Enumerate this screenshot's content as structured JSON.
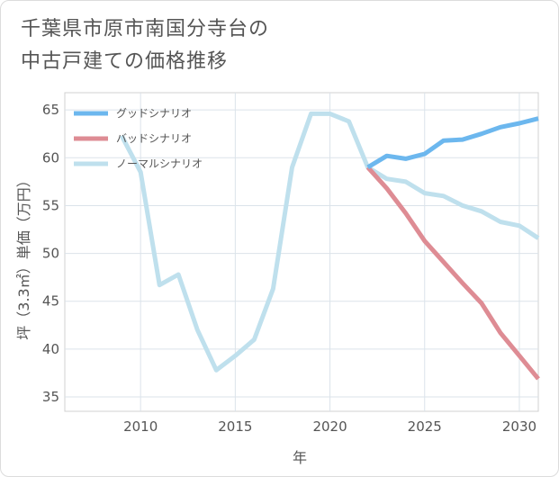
{
  "title_line1": "千葉県市原市南国分寺台の",
  "title_line2": "中古戸建ての価格推移",
  "chart_data": {
    "type": "line",
    "xlabel": "年",
    "ylabel": "坪（3.3㎡）単価（万円）",
    "xlim": [
      2006,
      2031
    ],
    "ylim": [
      33.5,
      66.8
    ],
    "xticks": [
      2010,
      2015,
      2020,
      2025,
      2030
    ],
    "yticks": [
      35,
      40,
      45,
      50,
      55,
      60,
      65
    ],
    "grid": true,
    "legend_position": "top-left",
    "series": [
      {
        "name": "グッドシナリオ",
        "color": "#6cb7ee",
        "x": [
          2022,
          2023,
          2024,
          2025,
          2026,
          2027,
          2028,
          2029,
          2030,
          2031
        ],
        "y": [
          59.0,
          60.2,
          59.9,
          60.4,
          61.8,
          61.9,
          62.5,
          63.2,
          63.6,
          64.1
        ]
      },
      {
        "name": "バッドシナリオ",
        "color": "#de8c94",
        "x": [
          2022,
          2023,
          2024,
          2025,
          2026,
          2027,
          2028,
          2029,
          2030,
          2031
        ],
        "y": [
          59.0,
          56.8,
          54.2,
          51.3,
          49.1,
          46.9,
          44.8,
          41.7,
          39.3,
          36.9
        ]
      },
      {
        "name": "ノーマルシナリオ",
        "color": "#bfe0ed",
        "x": [
          2009,
          2010,
          2011,
          2012,
          2013,
          2014,
          2015,
          2016,
          2017,
          2018,
          2019,
          2020,
          2021,
          2022,
          2023,
          2024,
          2025,
          2026,
          2027,
          2028,
          2029,
          2030,
          2031
        ],
        "y": [
          62.3,
          58.5,
          46.7,
          47.8,
          42.0,
          37.8,
          39.3,
          41.0,
          46.3,
          59.0,
          64.6,
          64.6,
          63.8,
          59.0,
          57.8,
          57.5,
          56.3,
          56.0,
          55.0,
          54.4,
          53.3,
          52.9,
          51.6
        ]
      }
    ]
  }
}
